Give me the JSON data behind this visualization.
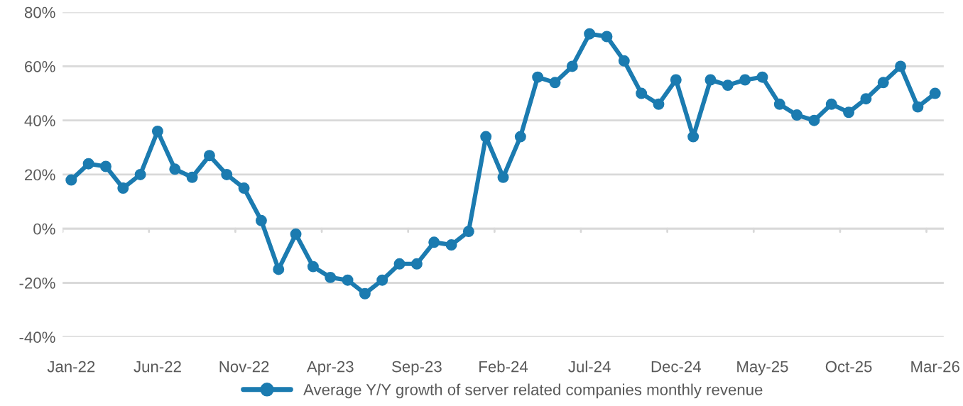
{
  "chart_data": {
    "type": "line",
    "categories": [
      "Jan-22",
      null,
      null,
      null,
      null,
      "Jun-22",
      null,
      null,
      null,
      null,
      "Nov-22",
      null,
      null,
      null,
      null,
      "Apr-23",
      null,
      null,
      null,
      null,
      "Sep-23",
      null,
      null,
      null,
      null,
      "Feb-24",
      null,
      null,
      null,
      null,
      "Jul-24",
      null,
      null,
      null,
      null,
      "Dec-24",
      null,
      null,
      null,
      null,
      "May-25",
      null,
      null,
      null,
      null,
      "Oct-25",
      null,
      null,
      null,
      null,
      "Mar-26"
    ],
    "series": [
      {
        "name": "Average Y/Y growth of server related companies monthly revenue",
        "color": "#1b7bb0",
        "values": [
          18,
          24,
          23,
          15,
          20,
          36,
          22,
          19,
          27,
          20,
          15,
          3,
          -15,
          -2,
          -14,
          -18,
          -19,
          -24,
          -19,
          -13,
          -13,
          -5,
          -6,
          -1,
          34,
          19,
          34,
          56,
          54,
          60,
          72,
          71,
          62,
          50,
          46,
          55,
          34,
          55,
          53,
          55,
          56,
          46,
          42,
          40,
          46,
          43,
          48,
          54,
          60,
          45,
          50
        ]
      }
    ],
    "ylim": [
      -40,
      80
    ],
    "yticks": [
      {
        "value": -40,
        "label": "-40%"
      },
      {
        "value": -20,
        "label": "-20%"
      },
      {
        "value": 0,
        "label": "0%"
      },
      {
        "value": 20,
        "label": "20%"
      },
      {
        "value": 40,
        "label": "40%"
      },
      {
        "value": 60,
        "label": "60%"
      },
      {
        "value": 80,
        "label": "80%"
      }
    ],
    "grid": "y",
    "legend": "bottom",
    "marker": "circle",
    "line_style": "solid"
  }
}
